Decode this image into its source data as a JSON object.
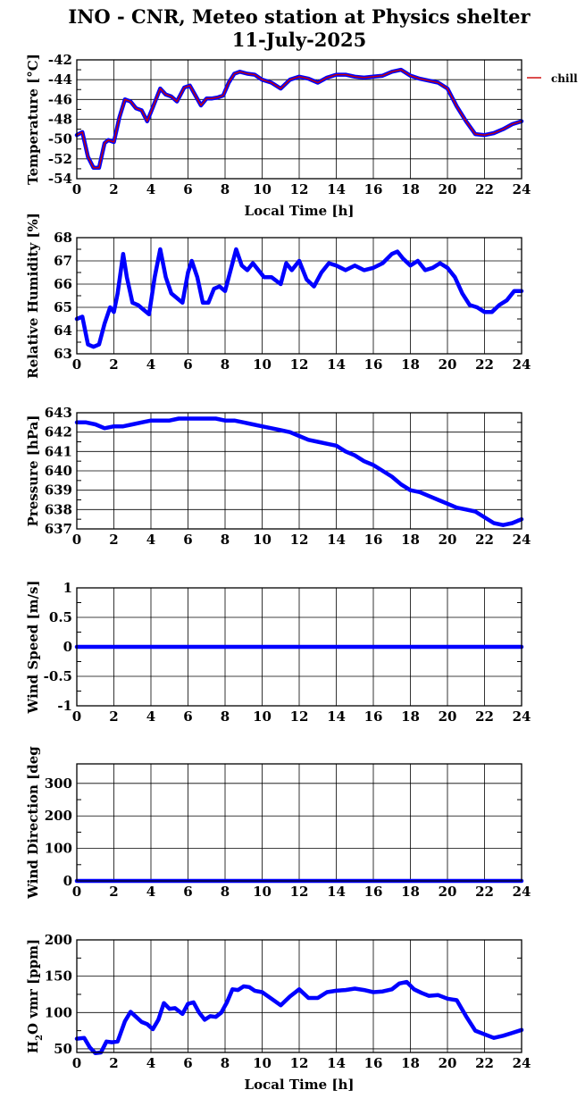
{
  "title_line1": "INO - CNR, Meteo station at Physics shelter",
  "title_line2": "11-July-2025",
  "colors": {
    "series": "#0000ff",
    "chill": "#cc0000",
    "frame": "#000000",
    "grid": "#000000"
  },
  "chart_data": [
    {
      "type": "line",
      "ylabel": "Temperature [°C]",
      "xlabel": "Local Time [h]",
      "xlim": [
        0,
        24
      ],
      "ylim": [
        -54,
        -42
      ],
      "xticks": [
        0,
        2,
        4,
        6,
        8,
        10,
        12,
        14,
        16,
        18,
        20,
        22,
        24
      ],
      "yticks": [
        -54,
        -52,
        -50,
        -48,
        -46,
        -44,
        -42
      ],
      "grid": true,
      "legend": {
        "position": "right",
        "entries": [
          "chill"
        ]
      },
      "series": [
        {
          "color": "#0000ff",
          "x": [
            0,
            0.3,
            0.6,
            0.9,
            1.2,
            1.5,
            1.7,
            2.0,
            2.3,
            2.6,
            2.9,
            3.2,
            3.5,
            3.8,
            4.1,
            4.5,
            4.8,
            5.1,
            5.4,
            5.8,
            6.1,
            6.4,
            6.7,
            7.0,
            7.3,
            7.6,
            7.9,
            8.2,
            8.5,
            8.8,
            9.2,
            9.6,
            10.0,
            10.5,
            11.0,
            11.5,
            12.0,
            12.5,
            13.0,
            13.5,
            14.0,
            14.5,
            15.0,
            15.5,
            16.0,
            16.5,
            17.0,
            17.5,
            18.0,
            18.5,
            19.0,
            19.5,
            20.0,
            20.5,
            21.0,
            21.5,
            22.0,
            22.5,
            23.0,
            23.5,
            24
          ],
          "y": [
            -49.6,
            -49.3,
            -51.8,
            -52.9,
            -52.9,
            -50.4,
            -50.1,
            -50.3,
            -47.8,
            -46.0,
            -46.2,
            -46.9,
            -47.1,
            -48.2,
            -46.8,
            -44.9,
            -45.5,
            -45.7,
            -46.2,
            -44.8,
            -44.6,
            -45.6,
            -46.6,
            -45.9,
            -45.9,
            -45.8,
            -45.6,
            -44.3,
            -43.4,
            -43.2,
            -43.4,
            -43.5,
            -44.0,
            -44.3,
            -44.9,
            -44.0,
            -43.7,
            -43.9,
            -44.3,
            -43.8,
            -43.5,
            -43.5,
            -43.7,
            -43.8,
            -43.7,
            -43.6,
            -43.2,
            -43.0,
            -43.6,
            -43.9,
            -44.1,
            -44.3,
            -44.9,
            -46.7,
            -48.2,
            -49.5,
            -49.6,
            -49.4,
            -49.0,
            -48.5,
            -48.2
          ]
        },
        {
          "name": "chill",
          "color": "#cc0000",
          "x": [
            0,
            0.3,
            0.6,
            0.9,
            1.2,
            1.5,
            1.7,
            2.0,
            2.3,
            2.6,
            2.9,
            3.2,
            3.5,
            3.8,
            4.1,
            4.5,
            4.8,
            5.1,
            5.4,
            5.8,
            6.1,
            6.4,
            6.7,
            7.0,
            7.3,
            7.6,
            7.9,
            8.2,
            8.5,
            8.8,
            9.2,
            9.6,
            10.0,
            10.5,
            11.0,
            11.5,
            12.0,
            12.5,
            13.0,
            13.5,
            14.0,
            14.5,
            15.0,
            15.5,
            16.0,
            16.5,
            17.0,
            17.5,
            18.0,
            18.5,
            19.0,
            19.5,
            20.0,
            20.5,
            21.0,
            21.5,
            22.0,
            22.5,
            23.0,
            23.5,
            24
          ],
          "y": [
            -49.6,
            -49.3,
            -51.8,
            -52.9,
            -52.9,
            -50.4,
            -50.1,
            -50.3,
            -47.8,
            -46.0,
            -46.2,
            -46.9,
            -47.1,
            -48.2,
            -46.8,
            -44.9,
            -45.5,
            -45.7,
            -46.2,
            -44.8,
            -44.6,
            -45.6,
            -46.6,
            -45.9,
            -45.9,
            -45.8,
            -45.6,
            -44.3,
            -43.4,
            -43.2,
            -43.4,
            -43.5,
            -44.0,
            -44.3,
            -44.9,
            -44.0,
            -43.7,
            -43.9,
            -44.3,
            -43.8,
            -43.5,
            -43.5,
            -43.7,
            -43.8,
            -43.7,
            -43.6,
            -43.2,
            -43.0,
            -43.6,
            -43.9,
            -44.1,
            -44.3,
            -44.9,
            -46.7,
            -48.2,
            -49.5,
            -49.6,
            -49.4,
            -49.0,
            -48.5,
            -48.2
          ]
        }
      ]
    },
    {
      "type": "line",
      "ylabel": "Relative Humidity [%]",
      "xlabel": "",
      "xlim": [
        0,
        24
      ],
      "ylim": [
        63,
        68
      ],
      "xticks": [
        0,
        2,
        4,
        6,
        8,
        10,
        12,
        14,
        16,
        18,
        20,
        22,
        24
      ],
      "yticks": [
        63,
        64,
        65,
        66,
        67,
        68
      ],
      "grid": true,
      "series": [
        {
          "color": "#0000ff",
          "x": [
            0,
            0.3,
            0.6,
            0.9,
            1.2,
            1.5,
            1.8,
            2.0,
            2.2,
            2.5,
            2.7,
            3.0,
            3.3,
            3.6,
            3.9,
            4.2,
            4.5,
            4.8,
            5.1,
            5.4,
            5.7,
            6.0,
            6.2,
            6.5,
            6.8,
            7.1,
            7.4,
            7.7,
            8.0,
            8.3,
            8.6,
            8.9,
            9.2,
            9.5,
            9.8,
            10.1,
            10.5,
            11.0,
            11.3,
            11.6,
            12.0,
            12.4,
            12.8,
            13.2,
            13.6,
            14.0,
            14.5,
            15.0,
            15.5,
            16.0,
            16.5,
            17.0,
            17.3,
            17.6,
            18.0,
            18.4,
            18.8,
            19.2,
            19.6,
            20.0,
            20.4,
            20.8,
            21.2,
            21.6,
            22.0,
            22.4,
            22.8,
            23.2,
            23.6,
            24
          ],
          "y": [
            64.5,
            64.6,
            63.4,
            63.3,
            63.4,
            64.3,
            65.0,
            64.8,
            65.6,
            67.3,
            66.3,
            65.2,
            65.1,
            64.9,
            64.7,
            66.3,
            67.5,
            66.3,
            65.6,
            65.4,
            65.2,
            66.5,
            67.0,
            66.3,
            65.2,
            65.2,
            65.8,
            65.9,
            65.7,
            66.6,
            67.5,
            66.8,
            66.6,
            66.9,
            66.6,
            66.3,
            66.3,
            66.0,
            66.9,
            66.6,
            67.0,
            66.2,
            65.9,
            66.5,
            66.9,
            66.8,
            66.6,
            66.8,
            66.6,
            66.7,
            66.9,
            67.3,
            67.4,
            67.1,
            66.8,
            67.0,
            66.6,
            66.7,
            66.9,
            66.7,
            66.3,
            65.6,
            65.1,
            65.0,
            64.8,
            64.8,
            65.1,
            65.3,
            65.7,
            65.7
          ]
        }
      ]
    },
    {
      "type": "line",
      "ylabel": "Pressure [hPa]",
      "xlabel": "",
      "xlim": [
        0,
        24
      ],
      "ylim": [
        637,
        643
      ],
      "xticks": [
        0,
        2,
        4,
        6,
        8,
        10,
        12,
        14,
        16,
        18,
        20,
        22,
        24
      ],
      "yticks": [
        637,
        638,
        639,
        640,
        641,
        642,
        643
      ],
      "grid": true,
      "series": [
        {
          "color": "#0000ff",
          "x": [
            0,
            0.5,
            1.0,
            1.5,
            2.0,
            2.5,
            3.0,
            3.5,
            4.0,
            4.5,
            5.0,
            5.5,
            6.0,
            6.5,
            7.0,
            7.5,
            8.0,
            8.5,
            9.0,
            9.5,
            10.0,
            10.5,
            11.0,
            11.5,
            12.0,
            12.5,
            13.0,
            13.5,
            14.0,
            14.5,
            15.0,
            15.5,
            16.0,
            16.5,
            17.0,
            17.5,
            18.0,
            18.5,
            19.0,
            19.5,
            20.0,
            20.5,
            21.0,
            21.5,
            22.0,
            22.5,
            23.0,
            23.5,
            24
          ],
          "y": [
            642.5,
            642.5,
            642.4,
            642.2,
            642.3,
            642.3,
            642.4,
            642.5,
            642.6,
            642.6,
            642.6,
            642.7,
            642.7,
            642.7,
            642.7,
            642.7,
            642.6,
            642.6,
            642.5,
            642.4,
            642.3,
            642.2,
            642.1,
            642.0,
            641.8,
            641.6,
            641.5,
            641.4,
            641.3,
            641.0,
            640.8,
            640.5,
            640.3,
            640.0,
            639.7,
            639.3,
            639.0,
            638.9,
            638.7,
            638.5,
            638.3,
            638.1,
            638.0,
            637.9,
            637.6,
            637.3,
            637.2,
            637.3,
            637.5
          ]
        }
      ]
    },
    {
      "type": "line",
      "ylabel": "Wind Speed [m/s]",
      "xlabel": "",
      "xlim": [
        0,
        24
      ],
      "ylim": [
        -1,
        1
      ],
      "xticks": [
        0,
        2,
        4,
        6,
        8,
        10,
        12,
        14,
        16,
        18,
        20,
        22,
        24
      ],
      "yticks": [
        -1,
        -0.5,
        0,
        0.5,
        1
      ],
      "grid": true,
      "series": [
        {
          "color": "#0000ff",
          "x": [
            0,
            24
          ],
          "y": [
            0,
            0
          ]
        }
      ]
    },
    {
      "type": "line",
      "ylabel": "Wind Direction [deg",
      "xlabel": "",
      "xlim": [
        0,
        24
      ],
      "ylim": [
        0,
        360
      ],
      "xticks": [
        0,
        2,
        4,
        6,
        8,
        10,
        12,
        14,
        16,
        18,
        20,
        22,
        24
      ],
      "yticks": [
        0,
        100,
        200,
        300
      ],
      "grid": true,
      "series": [
        {
          "color": "#0000ff",
          "x": [
            0,
            24
          ],
          "y": [
            0,
            0
          ]
        }
      ]
    },
    {
      "type": "line",
      "ylabel": "H2O vmr [ppm]",
      "xlabel": "Local Time [h]",
      "xlim": [
        0,
        24
      ],
      "ylim": [
        45,
        200
      ],
      "xticks": [
        0,
        2,
        4,
        6,
        8,
        10,
        12,
        14,
        16,
        18,
        20,
        22,
        24
      ],
      "yticks": [
        50,
        100,
        150,
        200
      ],
      "grid": true,
      "series": [
        {
          "color": "#0000ff",
          "x": [
            0,
            0.4,
            0.7,
            1.0,
            1.3,
            1.6,
            1.9,
            2.2,
            2.6,
            2.9,
            3.2,
            3.5,
            3.8,
            4.1,
            4.4,
            4.7,
            5.0,
            5.3,
            5.7,
            6.0,
            6.3,
            6.6,
            6.9,
            7.2,
            7.5,
            7.8,
            8.1,
            8.4,
            8.7,
            9.0,
            9.3,
            9.6,
            10.0,
            10.5,
            11.0,
            11.5,
            12.0,
            12.5,
            13.0,
            13.5,
            14.0,
            14.5,
            15.0,
            15.5,
            16.0,
            16.5,
            17.0,
            17.4,
            17.8,
            18.2,
            18.6,
            19.0,
            19.5,
            20.0,
            20.5,
            21.0,
            21.5,
            22.0,
            22.5,
            23.0,
            23.5,
            24
          ],
          "y": [
            64,
            65,
            52,
            44,
            45,
            60,
            59,
            60,
            88,
            101,
            94,
            87,
            84,
            77,
            90,
            113,
            105,
            106,
            98,
            112,
            114,
            100,
            90,
            95,
            94,
            100,
            114,
            132,
            131,
            136,
            135,
            130,
            128,
            119,
            110,
            122,
            132,
            120,
            120,
            128,
            130,
            131,
            133,
            131,
            128,
            129,
            132,
            140,
            142,
            132,
            127,
            123,
            124,
            119,
            117,
            95,
            75,
            70,
            65,
            68,
            72,
            76
          ]
        }
      ]
    }
  ]
}
